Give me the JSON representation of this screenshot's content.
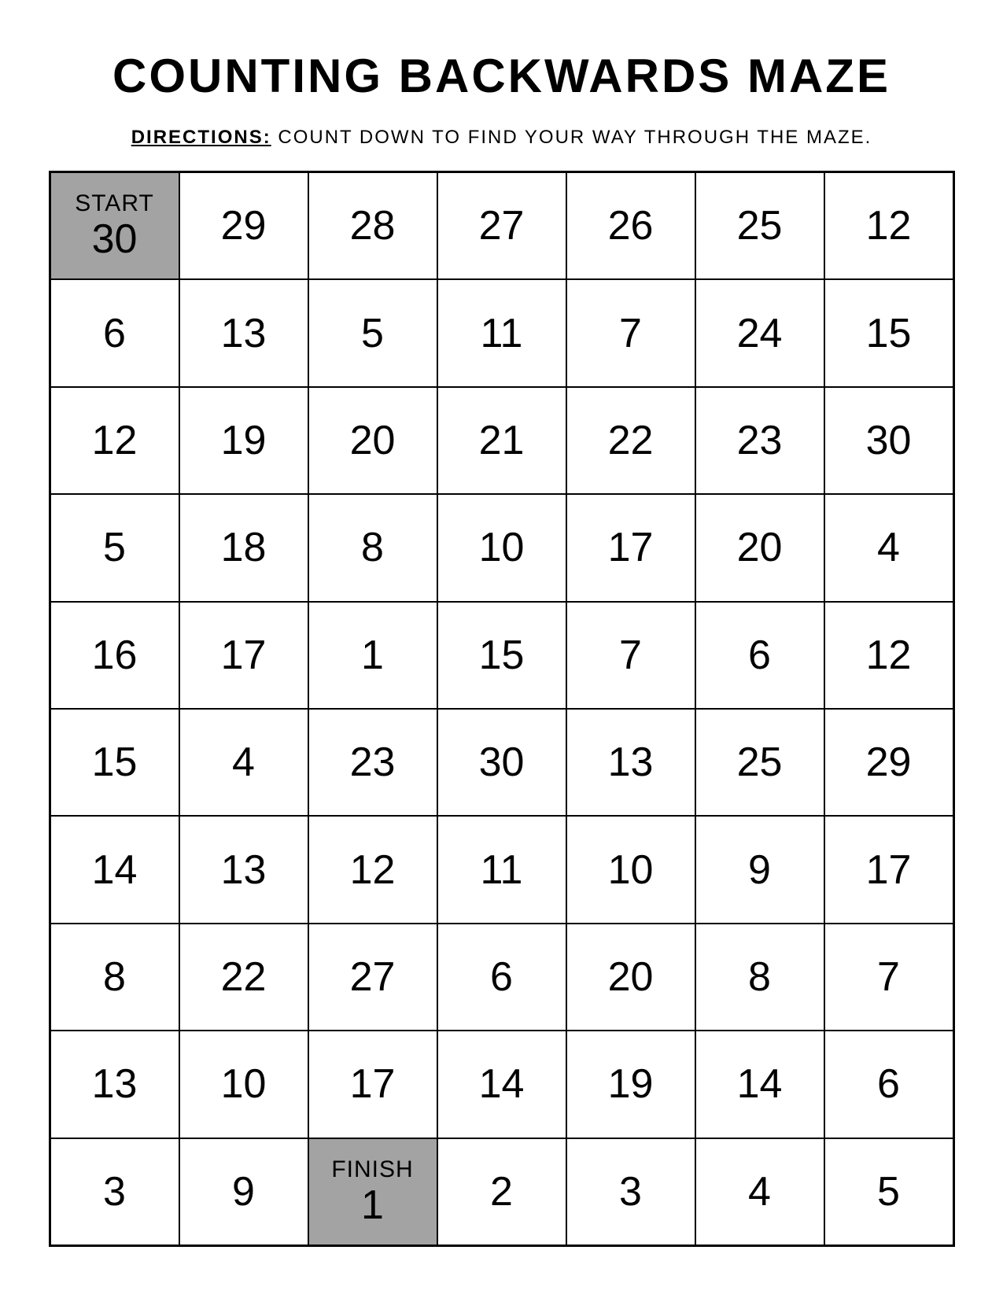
{
  "title": "Counting Backwards Maze",
  "directions": {
    "label": "Directions:",
    "text": " Count down to find your way through the maze."
  },
  "grid": {
    "type": "table",
    "columns": 7,
    "rows": 10,
    "background_color": "#ffffff",
    "highlight_color": "#a3a3a3",
    "border_color": "#000000",
    "text_color": "#000000",
    "number_fontsize": 52,
    "label_fontsize": 30,
    "cells": [
      [
        {
          "label": "Start",
          "value": "30",
          "highlighted": true
        },
        {
          "value": "29"
        },
        {
          "value": "28"
        },
        {
          "value": "27"
        },
        {
          "value": "26"
        },
        {
          "value": "25"
        },
        {
          "value": "12"
        }
      ],
      [
        {
          "value": "6"
        },
        {
          "value": "13"
        },
        {
          "value": "5"
        },
        {
          "value": "11"
        },
        {
          "value": "7"
        },
        {
          "value": "24"
        },
        {
          "value": "15"
        }
      ],
      [
        {
          "value": "12"
        },
        {
          "value": "19"
        },
        {
          "value": "20"
        },
        {
          "value": "21"
        },
        {
          "value": "22"
        },
        {
          "value": "23"
        },
        {
          "value": "30"
        }
      ],
      [
        {
          "value": "5"
        },
        {
          "value": "18"
        },
        {
          "value": "8"
        },
        {
          "value": "10"
        },
        {
          "value": "17"
        },
        {
          "value": "20"
        },
        {
          "value": "4"
        }
      ],
      [
        {
          "value": "16"
        },
        {
          "value": "17"
        },
        {
          "value": "1"
        },
        {
          "value": "15"
        },
        {
          "value": "7"
        },
        {
          "value": "6"
        },
        {
          "value": "12"
        }
      ],
      [
        {
          "value": "15"
        },
        {
          "value": "4"
        },
        {
          "value": "23"
        },
        {
          "value": "30"
        },
        {
          "value": "13"
        },
        {
          "value": "25"
        },
        {
          "value": "29"
        }
      ],
      [
        {
          "value": "14"
        },
        {
          "value": "13"
        },
        {
          "value": "12"
        },
        {
          "value": "11"
        },
        {
          "value": "10"
        },
        {
          "value": "9"
        },
        {
          "value": "17"
        }
      ],
      [
        {
          "value": "8"
        },
        {
          "value": "22"
        },
        {
          "value": "27"
        },
        {
          "value": "6"
        },
        {
          "value": "20"
        },
        {
          "value": "8"
        },
        {
          "value": "7"
        }
      ],
      [
        {
          "value": "13"
        },
        {
          "value": "10"
        },
        {
          "value": "17"
        },
        {
          "value": "14"
        },
        {
          "value": "19"
        },
        {
          "value": "14"
        },
        {
          "value": "6"
        }
      ],
      [
        {
          "value": "3"
        },
        {
          "value": "9"
        },
        {
          "label": "Finish",
          "value": "1",
          "highlighted": true
        },
        {
          "value": "2"
        },
        {
          "value": "3"
        },
        {
          "value": "4"
        },
        {
          "value": "5"
        }
      ]
    ]
  }
}
